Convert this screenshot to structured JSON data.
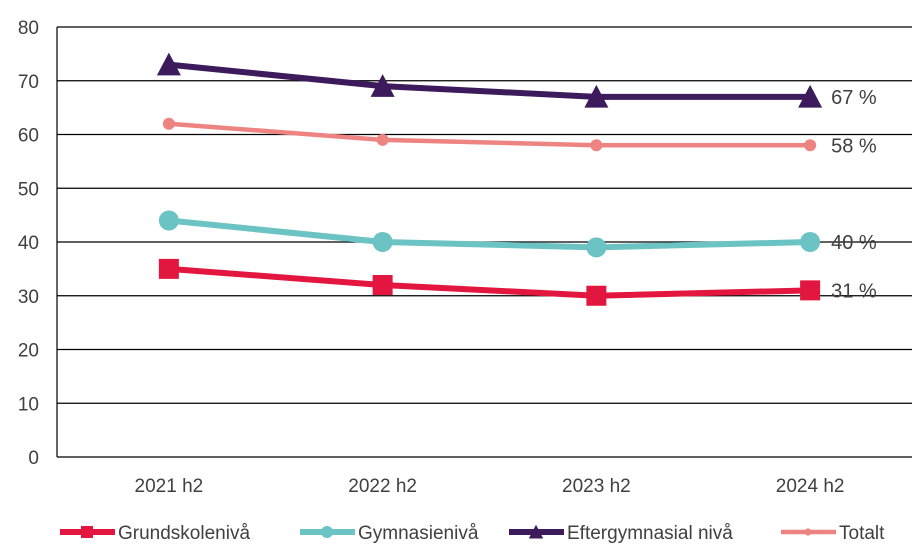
{
  "chart_data": {
    "type": "line",
    "categories": [
      "2021 h2",
      "2022 h2",
      "2023 h2",
      "2024 h2"
    ],
    "ylim": [
      0,
      80
    ],
    "yticks": [
      0,
      10,
      20,
      30,
      40,
      50,
      60,
      70,
      80
    ],
    "grid": true,
    "legend_position": "bottom",
    "series": [
      {
        "name": "Grundskolenivå",
        "values": [
          35,
          32,
          30,
          31
        ],
        "color": "#e2163f",
        "marker": "square",
        "end_label": "31 %"
      },
      {
        "name": "Gymnasienivå",
        "values": [
          44,
          40,
          39,
          40
        ],
        "color": "#6cc3c4",
        "marker": "circle",
        "end_label": "40 %"
      },
      {
        "name": "Eftergymnasial nivå",
        "values": [
          73,
          69,
          67,
          67
        ],
        "color": "#3c1a5b",
        "marker": "triangle",
        "end_label": "67 %"
      },
      {
        "name": "Totalt",
        "values": [
          62,
          59,
          58,
          58
        ],
        "color": "#ee8482",
        "marker": "circle-small",
        "end_label": "58 %"
      }
    ]
  }
}
